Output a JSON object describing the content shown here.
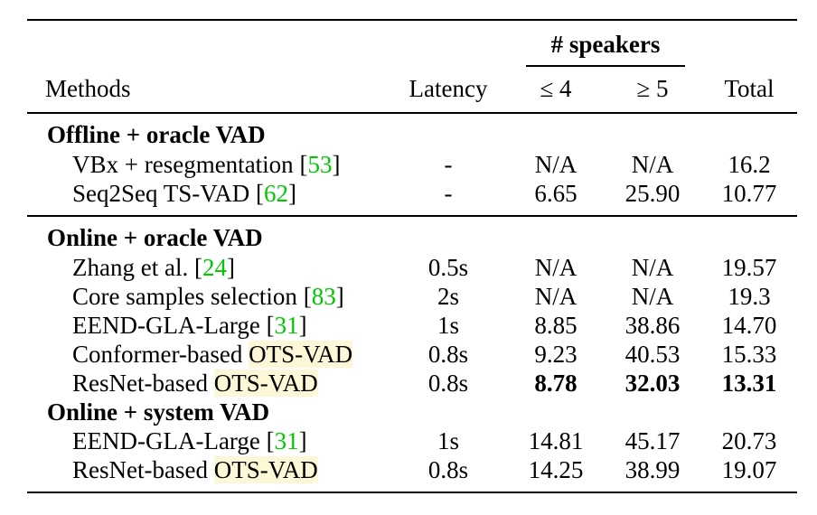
{
  "header": {
    "group": "# speakers",
    "methods": "Methods",
    "latency": "Latency",
    "le4": "≤ 4",
    "ge5": "≥ 5",
    "total": "Total"
  },
  "sections": [
    {
      "title": "Offline + oracle VAD",
      "rows": [
        {
          "name": "VBx + resegmentation ",
          "ref": "53",
          "tail": "",
          "latency": "-",
          "le4": "N/A",
          "ge5": "N/A",
          "total": "16.2"
        },
        {
          "name": "Seq2Seq TS-VAD ",
          "ref": "62",
          "tail": "",
          "latency": "-",
          "le4": "6.65",
          "ge5": "25.90",
          "total": "10.77"
        }
      ]
    },
    {
      "title": "Online + oracle VAD",
      "rows": [
        {
          "name": "Zhang et al. ",
          "ref": "24",
          "tail": "",
          "latency": "0.5s",
          "le4": "N/A",
          "ge5": "N/A",
          "total": "19.57"
        },
        {
          "name": "Core samples selection ",
          "ref": "83",
          "tail": "",
          "latency": "2s",
          "le4": "N/A",
          "ge5": "N/A",
          "total": "19.3"
        },
        {
          "name": "EEND-GLA-Large ",
          "ref": "31",
          "tail": "",
          "latency": "1s",
          "le4": "8.85",
          "ge5": "38.86",
          "total": "14.70"
        },
        {
          "name": "Conformer-based ",
          "ref": "",
          "tail": "OTS-VAD",
          "latency": "0.8s",
          "le4": "9.23",
          "ge5": "40.53",
          "total": "15.33"
        },
        {
          "name": "ResNet-based ",
          "ref": "",
          "tail": "OTS-VAD",
          "latency": "0.8s",
          "le4": "8.78",
          "ge5": "32.03",
          "total": "13.31",
          "bold": true
        }
      ]
    },
    {
      "title": "Online + system VAD",
      "rows": [
        {
          "name": "EEND-GLA-Large ",
          "ref": "31",
          "tail": "",
          "latency": "1s",
          "le4": "14.81",
          "ge5": "45.17",
          "total": "20.73"
        },
        {
          "name": "ResNet-based ",
          "ref": "",
          "tail": "OTS-VAD",
          "latency": "0.8s",
          "le4": "14.25",
          "ge5": "38.99",
          "total": "19.07"
        }
      ]
    }
  ]
}
